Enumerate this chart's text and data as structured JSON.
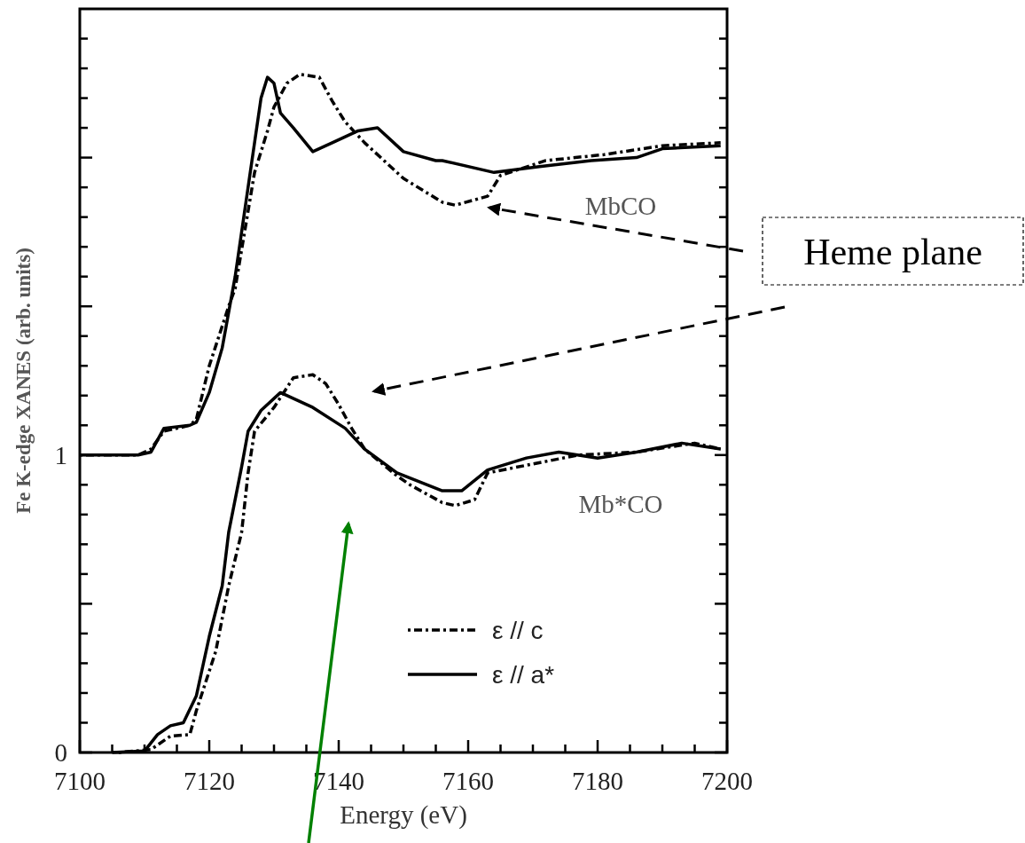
{
  "chart_data": {
    "type": "line",
    "xlabel": "Energy (eV)",
    "ylabel": "Fe K-edge XANES (arb. units)",
    "xlim": [
      7100,
      7200
    ],
    "ylim": [
      0,
      2.5
    ],
    "xticks": [
      7100,
      {
        "value": 7105,
        "label": null
      },
      {
        "value": 7110,
        "label": null
      },
      {
        "value": 7115,
        "label": null
      },
      7120,
      {
        "value": 7125,
        "label": null
      },
      {
        "value": 7130,
        "label": null
      },
      {
        "value": 7135,
        "label": null
      },
      7140,
      {
        "value": 7145,
        "label": null
      },
      {
        "value": 7150,
        "label": null
      },
      {
        "value": 7155,
        "label": null
      },
      7160,
      {
        "value": 7165,
        "label": null
      },
      {
        "value": 7170,
        "label": null
      },
      {
        "value": 7175,
        "label": null
      },
      7180,
      {
        "value": 7185,
        "label": null
      },
      {
        "value": 7190,
        "label": null
      },
      {
        "value": 7195,
        "label": null
      },
      7200
    ],
    "yticks": [
      0,
      {
        "value": 0.1,
        "label": null
      },
      {
        "value": 0.2,
        "label": null
      },
      {
        "value": 0.3,
        "label": null
      },
      {
        "value": 0.4,
        "label": null
      },
      {
        "value": 0.5,
        "label": null
      },
      {
        "value": 0.6,
        "label": null
      },
      {
        "value": 0.7,
        "label": null
      },
      {
        "value": 0.8,
        "label": null
      },
      {
        "value": 0.9,
        "label": null
      },
      1,
      {
        "value": 1.1,
        "label": null
      },
      {
        "value": 1.2,
        "label": null
      },
      {
        "value": 1.3,
        "label": null
      },
      {
        "value": 1.4,
        "label": null
      },
      {
        "value": 1.5,
        "label": null
      },
      {
        "value": 1.6,
        "label": null
      },
      {
        "value": 1.7,
        "label": null
      },
      {
        "value": 1.8,
        "label": null
      },
      {
        "value": 1.9,
        "label": null
      },
      {
        "value": 2,
        "label": null
      },
      {
        "value": 2.1,
        "label": null
      },
      {
        "value": 2.2,
        "label": null
      },
      {
        "value": 2.3,
        "label": null
      },
      {
        "value": 2.4,
        "label": null
      }
    ],
    "legend": "bottom right",
    "grid": false,
    "marker": "none",
    "series": [
      {
        "name": "ε // c",
        "color": "#000000",
        "line_style": "dotted",
        "x": [
          7100,
          7109,
          7111,
          7113,
          7117,
          7118,
          7120,
          7123,
          7124,
          7127,
          7129,
          7130,
          7132,
          7134,
          7137,
          7139,
          7141,
          7144,
          7150,
          7156,
          7158,
          7163,
          7165,
          7172,
          7181,
          7190,
          7199
        ],
        "values": [
          1.0,
          1.0,
          1.02,
          1.08,
          1.1,
          1.12,
          1.3,
          1.5,
          1.56,
          1.95,
          2.09,
          2.17,
          2.25,
          2.28,
          2.27,
          2.19,
          2.12,
          2.05,
          1.93,
          1.85,
          1.84,
          1.87,
          1.94,
          1.99,
          2.01,
          2.04,
          2.05
        ]
      },
      {
        "name": "ε // a*",
        "color": "#000000",
        "line_style": "solid",
        "x": [
          7100,
          7109,
          7111,
          7113,
          7117,
          7118,
          7120,
          7122,
          7124,
          7126,
          7127,
          7128,
          7129,
          7130,
          7131,
          7133,
          7136,
          7139,
          7143,
          7146,
          7150,
          7155,
          7156,
          7164,
          7171,
          7179,
          7186,
          7190,
          7199
        ],
        "values": [
          1.0,
          1.0,
          1.01,
          1.09,
          1.1,
          1.11,
          1.21,
          1.36,
          1.6,
          1.9,
          2.05,
          2.2,
          2.27,
          2.25,
          2.15,
          2.1,
          2.02,
          2.05,
          2.09,
          2.1,
          2.02,
          1.99,
          1.99,
          1.95,
          1.97,
          1.99,
          2.0,
          2.03,
          2.04
        ]
      },
      {
        "color": "#000000",
        "line_style": "dotted",
        "x": [
          7106,
          7111,
          7114,
          7117,
          7118,
          7121,
          7123,
          7125,
          7126,
          7127,
          7130,
          7133,
          7136,
          7138,
          7140,
          7142,
          7144,
          7149,
          7151,
          7156,
          7158,
          7161,
          7163,
          7170,
          7177,
          7186,
          7195,
          7199
        ],
        "values": [
          0.0,
          0.01,
          0.055,
          0.06,
          0.14,
          0.34,
          0.56,
          0.74,
          0.94,
          1.08,
          1.16,
          1.26,
          1.27,
          1.24,
          1.17,
          1.09,
          1.02,
          0.93,
          0.9,
          0.84,
          0.83,
          0.85,
          0.94,
          0.97,
          1.0,
          1.01,
          1.04,
          1.02
        ]
      },
      {
        "color": "#000000",
        "line_style": "solid",
        "x": [
          7105,
          7110,
          7112,
          7114,
          7116,
          7118,
          7120,
          7122,
          7123,
          7125,
          7126,
          7128,
          7131,
          7136,
          7141,
          7144,
          7149,
          7156,
          7159,
          7163,
          7169,
          7174,
          7180,
          7186,
          7193,
          7199
        ],
        "values": [
          0.0,
          0.005,
          0.06,
          0.09,
          0.1,
          0.19,
          0.39,
          0.56,
          0.74,
          0.96,
          1.08,
          1.15,
          1.21,
          1.16,
          1.09,
          1.02,
          0.94,
          0.88,
          0.88,
          0.95,
          0.99,
          1.01,
          0.99,
          1.01,
          1.04,
          1.02
        ]
      }
    ],
    "annotations": [
      "MbCO",
      "Mb*CO",
      "Heme plane"
    ]
  }
}
